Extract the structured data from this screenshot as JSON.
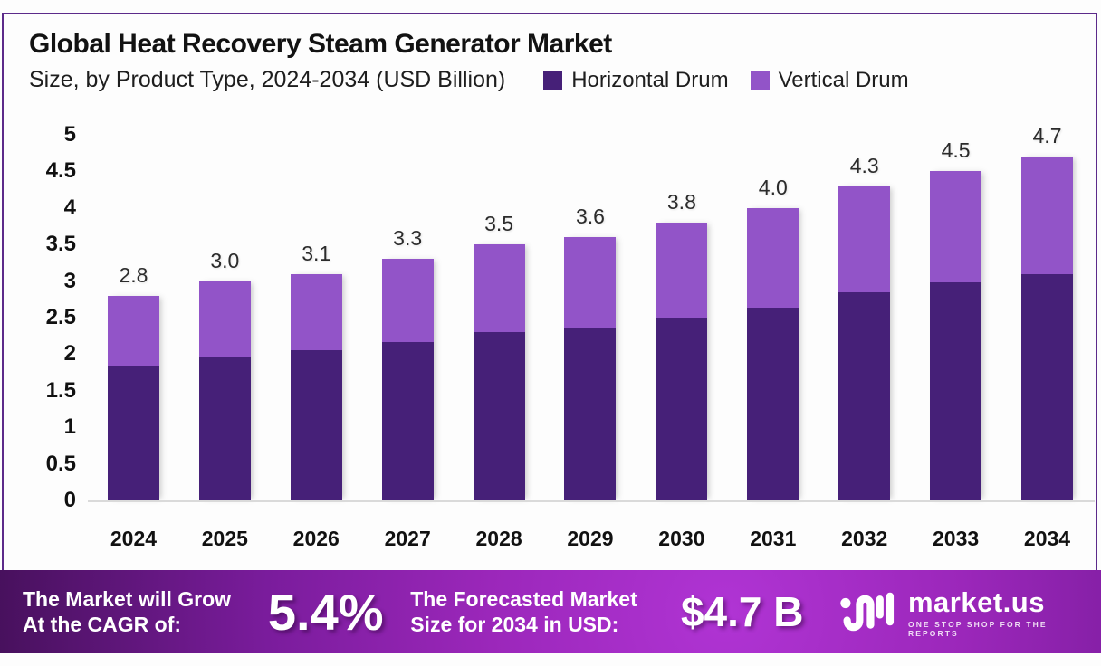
{
  "header": {
    "title": "Global Heat Recovery Steam Generator Market",
    "subtitle": "Size, by Product Type, 2024-2034 (USD Billion)"
  },
  "chart_data": {
    "type": "bar",
    "stacked": true,
    "title": "Global Heat Recovery Steam Generator Market",
    "subtitle": "Size, by Product Type, 2024-2034 (USD Billion)",
    "unit": "USD Billion",
    "categories": [
      "2024",
      "2025",
      "2026",
      "2027",
      "2028",
      "2029",
      "2030",
      "2031",
      "2032",
      "2033",
      "2034"
    ],
    "series": [
      {
        "name": "Horizontal Drum",
        "color": "#462078",
        "values": [
          1.85,
          1.97,
          2.05,
          2.17,
          2.3,
          2.37,
          2.5,
          2.64,
          2.85,
          2.98,
          3.1
        ]
      },
      {
        "name": "Vertical Drum",
        "color": "#9254c8",
        "values": [
          0.95,
          1.03,
          1.05,
          1.13,
          1.2,
          1.23,
          1.3,
          1.36,
          1.45,
          1.52,
          1.6
        ]
      }
    ],
    "total_labels": [
      "2.8",
      "3.0",
      "3.1",
      "3.3",
      "3.5",
      "3.6",
      "3.8",
      "4.0",
      "4.3",
      "4.5",
      "4.7"
    ],
    "yticks": [
      5,
      4.5,
      4,
      3.5,
      3,
      2.5,
      2,
      1.5,
      1,
      0.5,
      0
    ],
    "ylim": [
      0,
      5
    ],
    "grid": false,
    "legend_position": "top-right"
  },
  "banner": {
    "cagr_label_line1": "The Market will Grow",
    "cagr_label_line2": "At the CAGR of:",
    "cagr_value": "5.4%",
    "forecast_label_line1": "The Forecasted Market",
    "forecast_label_line2": "Size for 2034 in USD:",
    "forecast_value": "$4.7 B",
    "logo_text": "market.us",
    "logo_tagline": "ONE STOP SHOP FOR THE REPORTS"
  },
  "colors": {
    "frame_border": "#5c2a8a",
    "series_dark": "#462078",
    "series_light": "#9254c8",
    "banner_gradient_center": "#b034d4",
    "banner_gradient_edge": "#45105a",
    "axis_line": "#dadada",
    "text": "#121212"
  }
}
